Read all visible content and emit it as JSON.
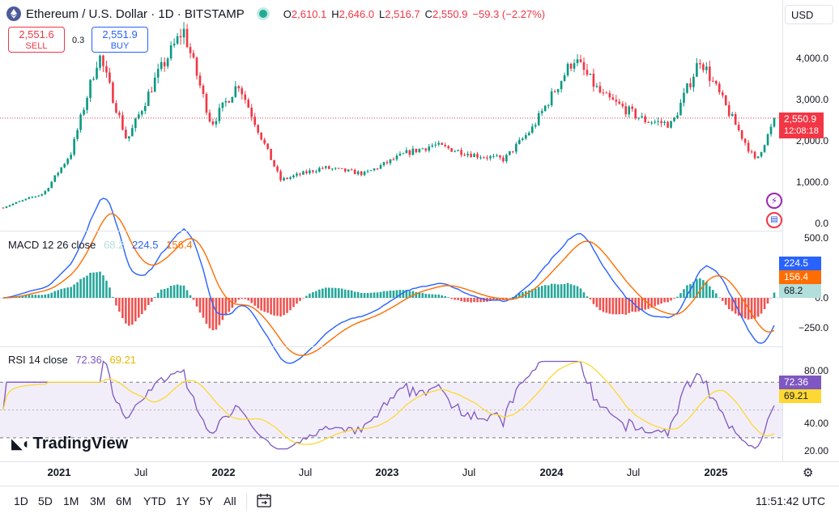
{
  "header": {
    "title": "Ethereum / U.S. Dollar · 1D · BITSTAMP",
    "open_label": "O",
    "open": "2,610.1",
    "high_label": "H",
    "high": "2,646.0",
    "low_label": "L",
    "low": "2,516.7",
    "close_label": "C",
    "close": "2,550.9",
    "change": "−59.3 (−2.27%)"
  },
  "trade": {
    "sell_price": "2,551.6",
    "sell_label": "SELL",
    "spread": "0.3",
    "buy_price": "2,551.9",
    "buy_label": "BUY"
  },
  "currency": "USD",
  "price_scale": {
    "ticks": [
      "4,000.0",
      "3,000.0",
      "2,000.0",
      "1,000.0",
      "0.0"
    ],
    "last_price": "2,550.9",
    "countdown": "12:08:18"
  },
  "macd": {
    "label": "MACD 12 26 close",
    "hist_value": "68.2",
    "macd_value": "224.5",
    "signal_value": "156.4",
    "ticks": [
      "500.0",
      "0.0",
      "−250.0"
    ]
  },
  "rsi": {
    "label": "RSI 14 close",
    "rsi_value": "72.36",
    "ma_value": "69.21",
    "ticks": [
      "80.00",
      "40.00",
      "20.00"
    ]
  },
  "x_axis": [
    "2021",
    "Jul",
    "2022",
    "Jul",
    "2023",
    "Jul",
    "2024",
    "Jul",
    "2025"
  ],
  "timeframes": [
    "1D",
    "5D",
    "1M",
    "3M",
    "6M",
    "YTD",
    "1Y",
    "5Y",
    "All"
  ],
  "clock": "11:51:42 UTC",
  "watermark": "TradingView",
  "colors": {
    "up": "#089981",
    "down": "#f23645",
    "macd": "#2962ff",
    "signal": "#ff6d00",
    "rsi": "#7e57c2",
    "rsi_ma": "#fdd835"
  },
  "chart_data": {
    "type": "line",
    "x": [
      "2020-10",
      "2021-01",
      "2021-03",
      "2021-05",
      "2021-07",
      "2021-09",
      "2021-11",
      "2022-01",
      "2022-03",
      "2022-05",
      "2022-06",
      "2022-09",
      "2022-12",
      "2023-03",
      "2023-05",
      "2023-08",
      "2023-10",
      "2023-12",
      "2024-03",
      "2024-05",
      "2024-08",
      "2024-10",
      "2024-12",
      "2025-02",
      "2025-04",
      "2025-05"
    ],
    "series": [
      {
        "values": [
          380,
          730,
          1700,
          4100,
          2000,
          3500,
          4700,
          2400,
          3400,
          1800,
          1050,
          1350,
          1200,
          1700,
          1900,
          1650,
          1550,
          2300,
          4000,
          3100,
          2500,
          2400,
          4000,
          2700,
          1500,
          2550.9
        ]
      }
    ],
    "ylim": [
      0,
      4800
    ],
    "grid": false
  }
}
